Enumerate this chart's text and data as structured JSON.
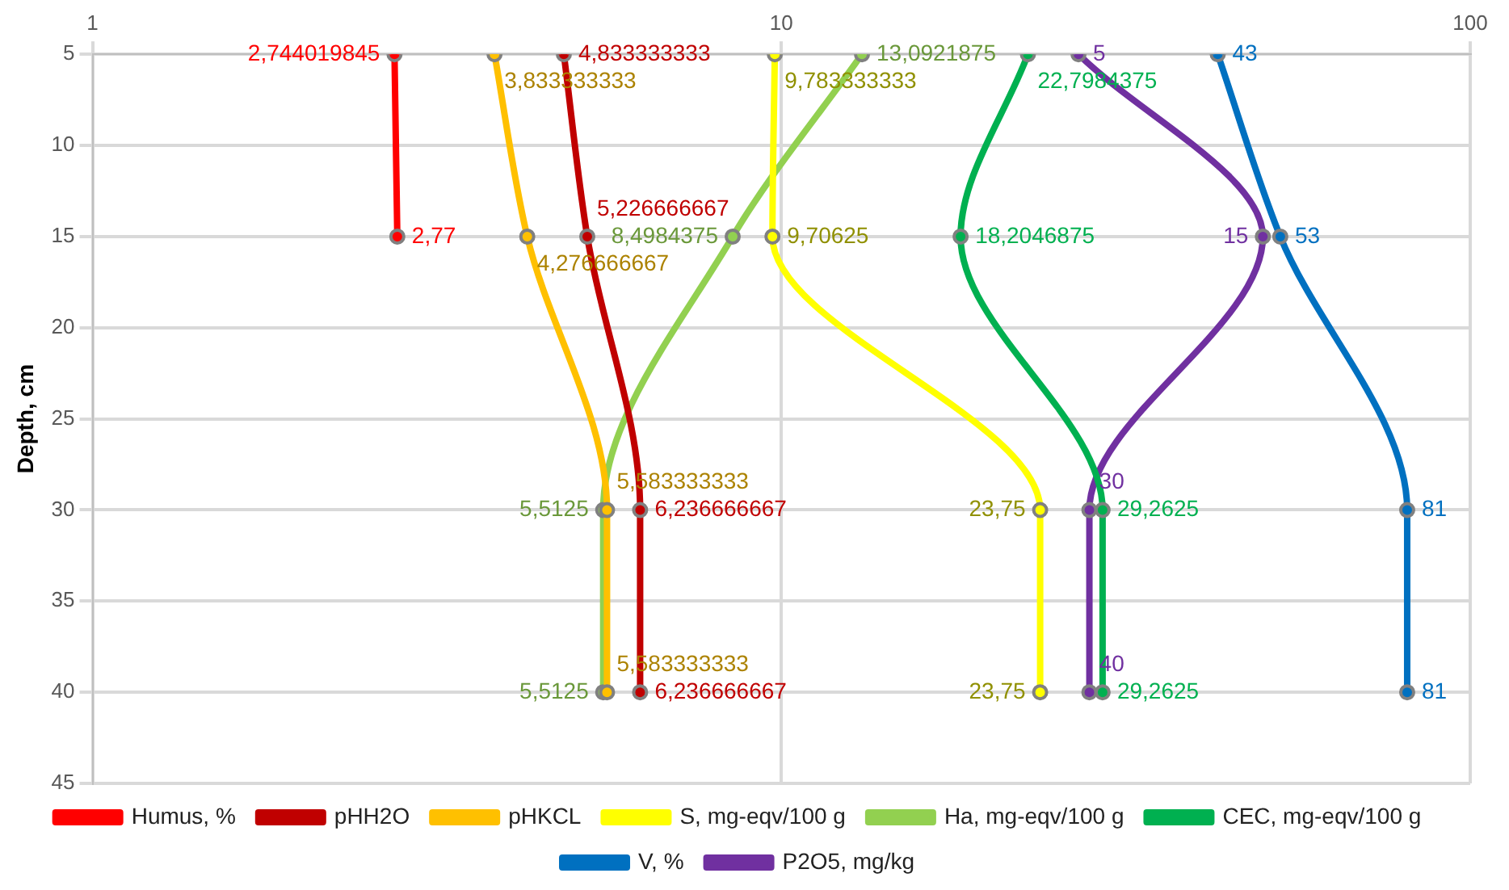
{
  "chart_data": {
    "type": "line",
    "orientation": "horizontal",
    "ylabel": "Depth, cm",
    "log": "x",
    "xlim": [
      1,
      100
    ],
    "xticks": [
      1,
      10,
      100
    ],
    "ylim": [
      45,
      5
    ],
    "yticks": [
      5,
      10,
      15,
      20,
      25,
      30,
      35,
      40,
      45
    ],
    "grid": true,
    "legend": "bottom",
    "marker": "circle",
    "line_style": "solid",
    "series": [
      {
        "name": "Humus, %",
        "color": "#ff0000",
        "x": [
          5,
          15
        ],
        "values": [
          2.744019845,
          2.77
        ],
        "value_labels": [
          "2,744019845",
          "2,77"
        ]
      },
      {
        "name": "pHH2O",
        "color": "#c00000",
        "x": [
          5,
          15,
          30,
          40
        ],
        "values": [
          4.833333333,
          5.226666667,
          6.236666667,
          6.236666667
        ],
        "value_labels": [
          "4,833333333",
          "5,226666667",
          "6,236666667",
          "6,236666667"
        ]
      },
      {
        "name": "pHKCL",
        "color": "#ffc000",
        "x": [
          5,
          15,
          30,
          40
        ],
        "values": [
          3.833333333,
          4.276666667,
          5.583333333,
          5.583333333
        ],
        "value_labels": [
          "3,833333333",
          "4,276666667",
          "5,583333333",
          "5,583333333"
        ]
      },
      {
        "name": "S, mg-eqv/100 g",
        "color": "#ffff00",
        "x": [
          5,
          15,
          30,
          40
        ],
        "values": [
          9.783333333,
          9.70625,
          23.75,
          23.75
        ],
        "value_labels": [
          "9,783333333",
          "9,70625",
          "23,75",
          "23,75"
        ]
      },
      {
        "name": "Ha, mg-eqv/100 g",
        "color": "#92d050",
        "x": [
          5,
          15,
          30,
          40
        ],
        "values": [
          13.0921875,
          8.4984375,
          5.5125,
          5.5125
        ],
        "value_labels": [
          "13,0921875",
          "8,4984375",
          "5,5125",
          "5,5125"
        ]
      },
      {
        "name": "CEC, mg-eqv/100 g",
        "color": "#00b050",
        "x": [
          5,
          15,
          30,
          40
        ],
        "values": [
          22.7984375,
          18.2046875,
          29.2625,
          29.2625
        ],
        "value_labels": [
          "22,7984375",
          "18,2046875",
          "29,2625",
          "29,2625"
        ]
      },
      {
        "name": "V, %",
        "color": "#0070c0",
        "x": [
          5,
          15,
          30,
          40
        ],
        "values": [
          43,
          53,
          81,
          81
        ],
        "value_labels": [
          "43",
          "53",
          "81",
          "81"
        ]
      },
      {
        "name": "P2O5, mg/kg",
        "color": "#7030a0",
        "x": [
          5,
          15,
          30,
          40
        ],
        "values": [
          27,
          50,
          28,
          28
        ]
      }
    ],
    "annotations": [
      {
        "text": "5",
        "x": 27,
        "y": 5
      },
      {
        "text": "15",
        "x": 50,
        "y": 15
      },
      {
        "text": "30",
        "x": 28,
        "y": 30
      },
      {
        "text": "40",
        "x": 28,
        "y": 40
      }
    ]
  }
}
